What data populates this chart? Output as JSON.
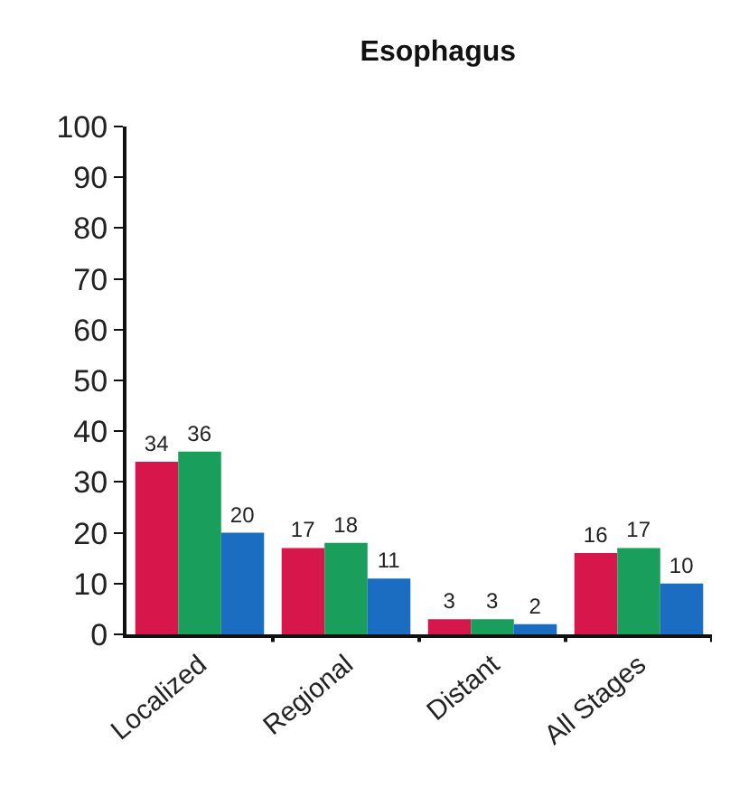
{
  "chart_data": {
    "type": "bar",
    "title": "Esophagus",
    "categories": [
      "Localized",
      "Regional",
      "Distant",
      "All Stages"
    ],
    "series": [
      {
        "color": "#d7174b",
        "values": [
          34,
          17,
          3,
          16
        ]
      },
      {
        "color": "#1a9e5c",
        "values": [
          36,
          18,
          3,
          17
        ]
      },
      {
        "color": "#1b6dc1",
        "values": [
          20,
          11,
          2,
          10
        ]
      }
    ],
    "ylim": [
      0,
      100
    ],
    "yticks": [
      0,
      10,
      20,
      30,
      40,
      50,
      60,
      70,
      80,
      90,
      100
    ],
    "data_labels": true
  }
}
